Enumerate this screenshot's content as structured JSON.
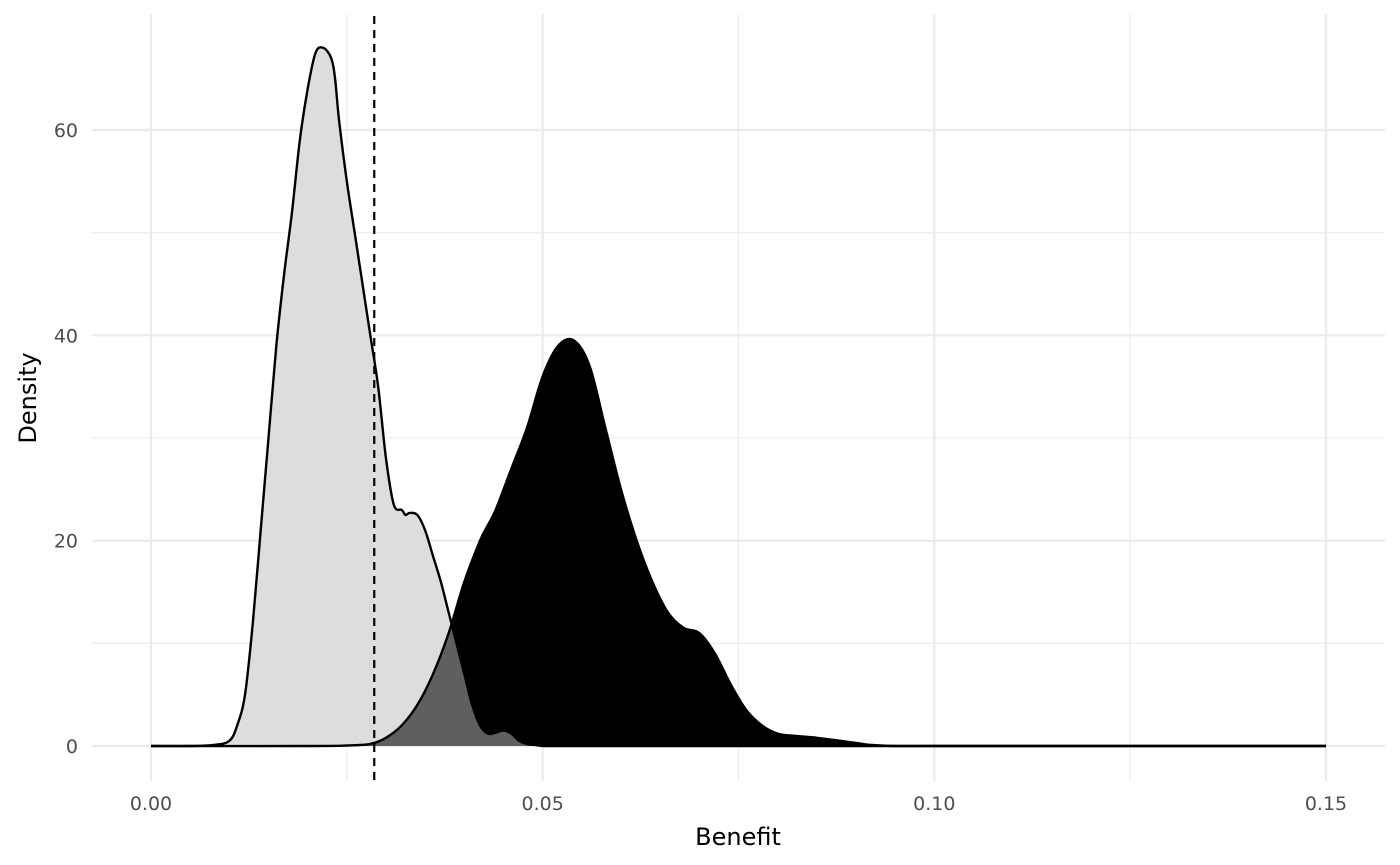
{
  "chart_data": {
    "type": "area",
    "title": "",
    "xlabel": "Benefit",
    "ylabel": "Density",
    "xlim": [
      -0.015,
      0.15
    ],
    "ylim": [
      -3.5,
      70
    ],
    "x_ticks": [
      0.0,
      0.05,
      0.1,
      0.15
    ],
    "x_tick_labels": [
      "0.00",
      "0.05",
      "0.10",
      "0.15"
    ],
    "y_ticks": [
      0,
      20,
      40,
      60
    ],
    "y_tick_labels": [
      "0",
      "20",
      "40",
      "60"
    ],
    "grid": true,
    "legend": "none",
    "reference_line": {
      "x": 0.0285,
      "style": "dashed"
    },
    "colors": {
      "series_1_fill": "#dddddd",
      "series_2_fill": "#000000",
      "overlap_fill": "#5f5f5f",
      "outline": "#000000",
      "grid": "#ebebeb"
    },
    "series": [
      {
        "x": [
          0.0,
          0.005,
          0.008,
          0.01,
          0.011,
          0.012,
          0.013,
          0.014,
          0.015,
          0.016,
          0.017,
          0.018,
          0.019,
          0.02,
          0.021,
          0.022,
          0.023,
          0.0235,
          0.024,
          0.025,
          0.026,
          0.027,
          0.028,
          0.029,
          0.03,
          0.031,
          0.032,
          0.0325,
          0.033,
          0.034,
          0.035,
          0.036,
          0.037,
          0.038,
          0.039,
          0.04,
          0.041,
          0.042,
          0.043,
          0.044,
          0.045,
          0.046,
          0.047,
          0.048,
          0.049,
          0.05,
          0.051,
          0.055,
          0.06,
          0.15
        ],
        "y": [
          0,
          0,
          0.1,
          0.5,
          2,
          5,
          12,
          21,
          30,
          39,
          46,
          52,
          59,
          64,
          67.5,
          68,
          67,
          65,
          61,
          55,
          50,
          45,
          40,
          35,
          28,
          23.5,
          23,
          22.5,
          22.7,
          22.5,
          21,
          18.5,
          16,
          13,
          10,
          7,
          4,
          2,
          1.2,
          1.3,
          1.5,
          1.2,
          0.5,
          0.2,
          0.1,
          0,
          0,
          0,
          0,
          0
        ]
      },
      {
        "x": [
          0.0,
          0.02,
          0.025,
          0.028,
          0.03,
          0.032,
          0.034,
          0.036,
          0.038,
          0.04,
          0.042,
          0.043,
          0.044,
          0.046,
          0.048,
          0.05,
          0.052,
          0.054,
          0.056,
          0.058,
          0.06,
          0.062,
          0.064,
          0.066,
          0.068,
          0.07,
          0.072,
          0.074,
          0.076,
          0.078,
          0.08,
          0.082,
          0.085,
          0.088,
          0.09,
          0.092,
          0.095,
          0.1,
          0.15
        ],
        "y": [
          0,
          0,
          0.05,
          0.2,
          0.8,
          2,
          4,
          7,
          11,
          16,
          20,
          21.5,
          23,
          27,
          31,
          36,
          39,
          39.5,
          37,
          31,
          25,
          20,
          16,
          13,
          11.5,
          11,
          9,
          6,
          3.5,
          2,
          1.2,
          1,
          0.8,
          0.5,
          0.3,
          0.1,
          0,
          0,
          0
        ]
      }
    ]
  }
}
